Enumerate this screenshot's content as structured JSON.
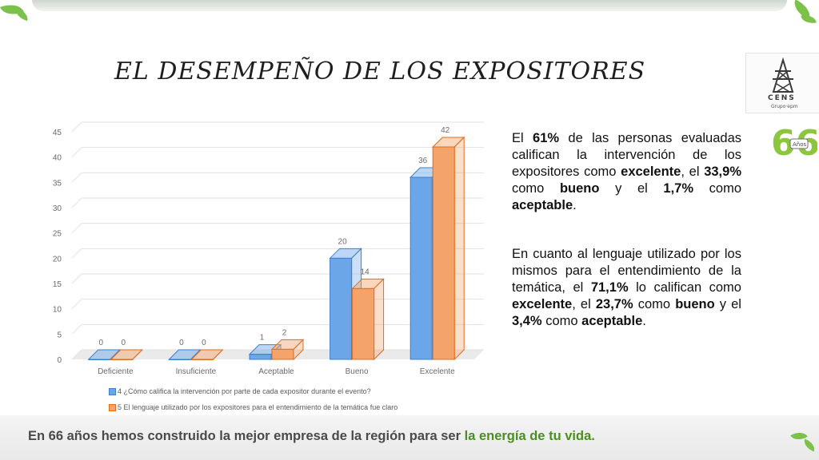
{
  "slide": {
    "title": "EL DESEMPEÑO DE LOS EXPOSITORES",
    "logo": {
      "name": "CENS",
      "sub": "Grupo·epm",
      "anniversary_number": "66",
      "anniversary_word": "Años"
    },
    "paragraph1": [
      {
        "t": "El ",
        "b": false
      },
      {
        "t": "61%",
        "b": true
      },
      {
        "t": " de las personas evaluadas califican la intervención de los expositores como ",
        "b": false
      },
      {
        "t": "excelente",
        "b": true
      },
      {
        "t": ", el ",
        "b": false
      },
      {
        "t": "33,9%",
        "b": true
      },
      {
        "t": " como ",
        "b": false
      },
      {
        "t": "bueno",
        "b": true
      },
      {
        "t": " y el ",
        "b": false
      },
      {
        "t": "1,7%",
        "b": true
      },
      {
        "t": " como ",
        "b": false
      },
      {
        "t": "aceptable",
        "b": true
      },
      {
        "t": ".",
        "b": false
      }
    ],
    "paragraph2": [
      {
        "t": "En cuanto al lenguaje utilizado por los mismos para el entendimiento de la temática, el ",
        "b": false
      },
      {
        "t": "71,1%",
        "b": true
      },
      {
        "t": " lo califican como ",
        "b": false
      },
      {
        "t": "excelente",
        "b": true
      },
      {
        "t": ", el ",
        "b": false
      },
      {
        "t": "23,7%",
        "b": true
      },
      {
        "t": " como ",
        "b": false
      },
      {
        "t": "bueno",
        "b": true
      },
      {
        "t": " y el ",
        "b": false
      },
      {
        "t": "3,4%",
        "b": true
      },
      {
        "t": " como ",
        "b": false
      },
      {
        "t": "aceptable",
        "b": true
      },
      {
        "t": ".",
        "b": false
      }
    ],
    "footer": {
      "text": "En 66 años hemos construido la mejor empresa de la región para ser ",
      "accent": "la energía de tu vida."
    }
  },
  "colors": {
    "series1": "#6aa6e8",
    "series1_edge": "#3f7fcf",
    "series2": "#f4a46a",
    "series2_edge": "#e06c1c",
    "accent_green": "#4a8f22",
    "grid": "#e2e2e2",
    "axis_text": "#6a6a6a"
  },
  "chart_data": {
    "type": "bar",
    "categories": [
      "Deficiente",
      "Insuficiente",
      "Aceptable",
      "Bueno",
      "Excelente"
    ],
    "series": [
      {
        "name": "4 ¿Cómo califica la intervención por parte de cada expositor durante el evento?",
        "values": [
          0,
          0,
          1,
          20,
          36
        ]
      },
      {
        "name": "5 El lenguaje utilizado por los expositores para el entendimiento de la temática fue claro",
        "values": [
          0,
          0,
          2,
          14,
          42
        ]
      }
    ],
    "yticks": [
      0,
      5,
      10,
      15,
      20,
      25,
      30,
      35,
      40,
      45
    ],
    "ylim": [
      0,
      45
    ],
    "grid": true,
    "legend": "bottom",
    "style": "3d-clustered"
  }
}
